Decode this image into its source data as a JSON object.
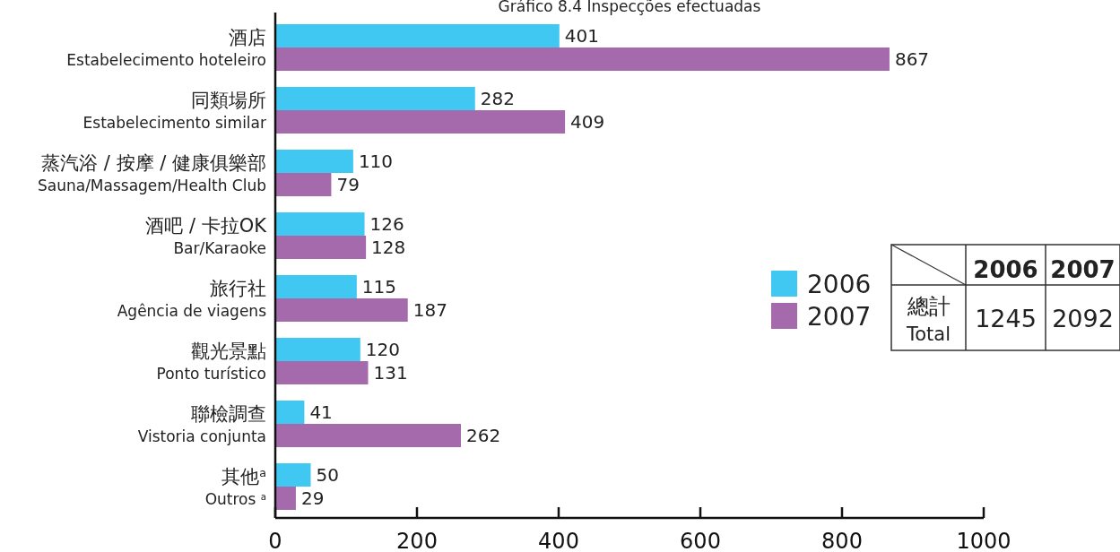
{
  "chart_data": {
    "type": "bar",
    "orientation": "horizontal",
    "title": "Gráfico 8.4 Inspecções efectuadas",
    "categories": [
      "酒店\nEstabelecimento hoteleiro",
      "同類場所\nEstabelecimento similar",
      "蒸汽浴 / 按摩 / 健康俱樂部\nSauna/Massagem/Health Club",
      "酒吧 / 卡拉OK\nBar/Karaoke",
      "旅行社\nAgência de viagens",
      "觀光景點\nPonto turístico",
      "聯檢調查\nVistoria conjunta",
      "其他$^{a}$\nOutros $^{a}$"
    ],
    "series": [
      {
        "name": "2006",
        "color": "#41c8f2",
        "values": [
          401,
          282,
          110,
          126,
          115,
          120,
          41,
          50
        ]
      },
      {
        "name": "2007",
        "color": "#a46aab",
        "values": [
          867,
          409,
          79,
          128,
          187,
          131,
          262,
          29
        ]
      }
    ],
    "xlim": [
      0,
      1000
    ],
    "xticks": [
      0,
      200,
      400,
      600,
      800,
      1000
    ],
    "data_labels": true,
    "grid": false,
    "legend": "right",
    "annotations": [
      "總計\nTotal",
      "1245",
      "2092"
    ]
  }
}
